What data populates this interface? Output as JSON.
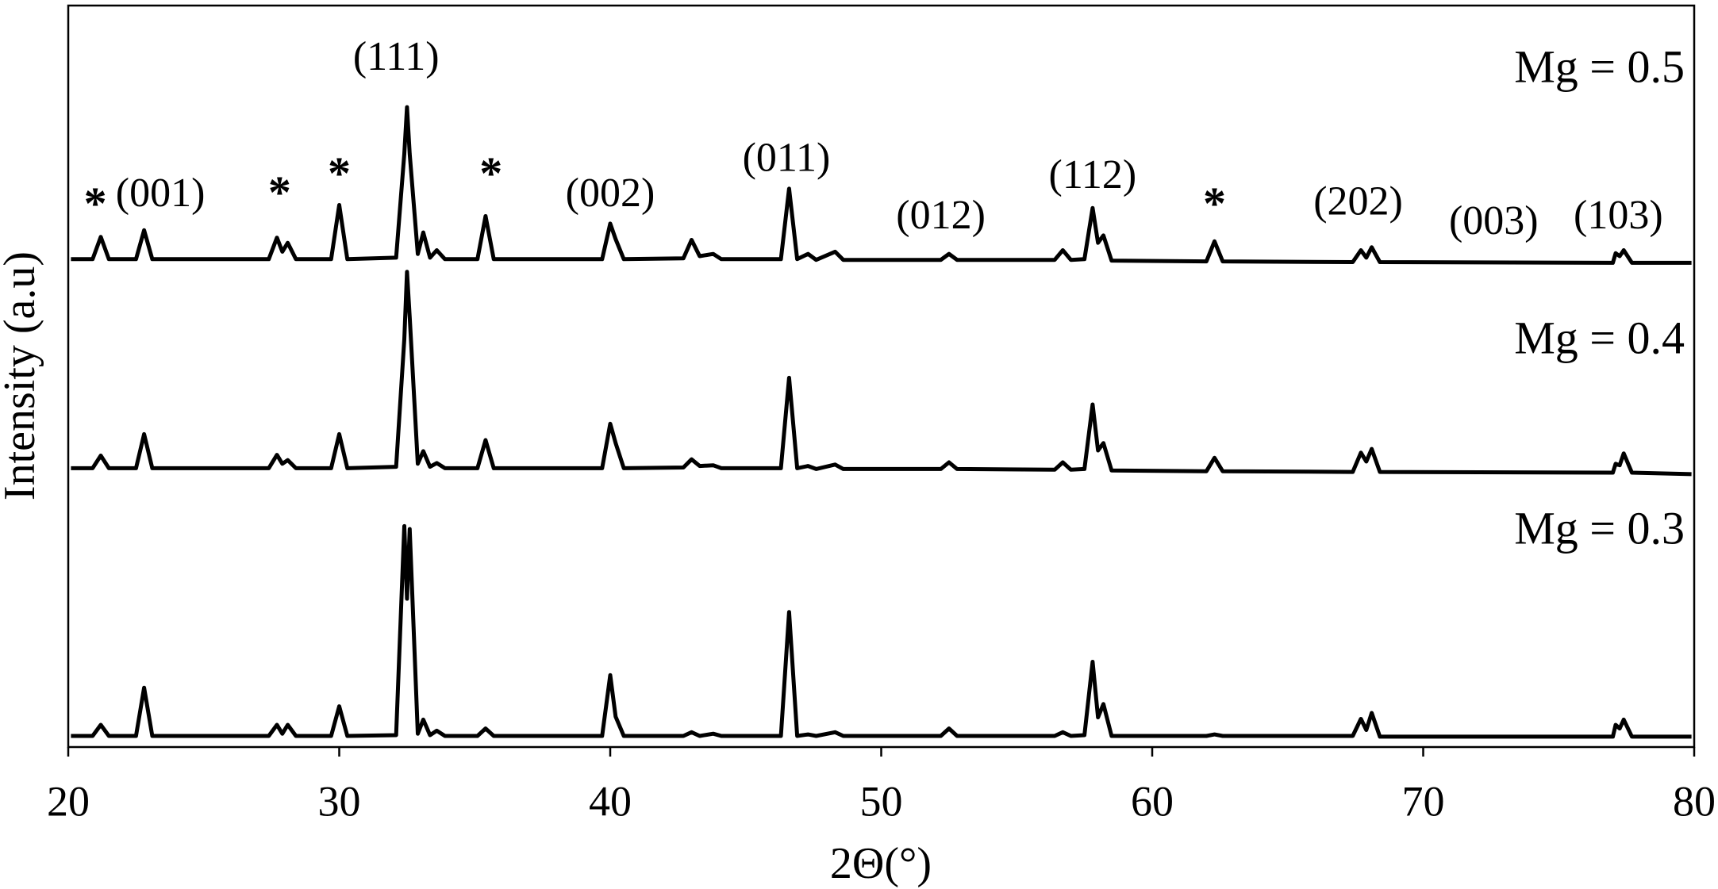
{
  "chart_data": {
    "type": "line",
    "x_label": "2Θ(°)",
    "y_label": "Intensity (a.u)",
    "xlim": [
      20,
      80
    ],
    "xticks": [
      20,
      30,
      40,
      50,
      60,
      70,
      80
    ],
    "ylim": [
      0,
      100
    ],
    "x": [
      20.1,
      20.9,
      21.2,
      21.5,
      22.5,
      22.8,
      23.1,
      27.4,
      27.7,
      27.9,
      28.1,
      28.4,
      29.7,
      30,
      30.3,
      32.1,
      32.4,
      32.5,
      32.6,
      32.9,
      33.1,
      33.35,
      33.6,
      33.9,
      35.1,
      35.4,
      35.7,
      39.7,
      40,
      40.2,
      40.5,
      42.7,
      43,
      43.3,
      43.8,
      44.1,
      46.3,
      46.6,
      46.9,
      47.3,
      47.6,
      48.3,
      48.6,
      52.2,
      52.5,
      52.8,
      56.4,
      56.7,
      57.0,
      57.5,
      57.8,
      58.0,
      58.2,
      58.5,
      62.0,
      62.3,
      62.6,
      67.4,
      67.7,
      67.9,
      68.1,
      68.4,
      77.0,
      77.1,
      77.25,
      77.4,
      77.7,
      79.9
    ],
    "series": [
      {
        "name": "Mg = 0.5",
        "color": "#000000",
        "values": [
          65.8,
          65.8,
          68.8,
          65.8,
          65.8,
          69.7,
          65.8,
          65.8,
          68.7,
          66.8,
          68,
          65.8,
          65.8,
          73.1,
          65.8,
          66,
          80,
          86.3,
          80,
          66.5,
          69.4,
          66,
          67,
          65.8,
          65.8,
          71.6,
          65.8,
          65.8,
          70.6,
          68.5,
          65.8,
          65.9,
          68.4,
          66.2,
          66.5,
          65.8,
          65.8,
          75.3,
          65.8,
          66.5,
          65.7,
          66.8,
          65.7,
          65.7,
          66.5,
          65.7,
          65.7,
          67,
          65.7,
          65.8,
          72.7,
          68,
          69,
          65.6,
          65.5,
          68.2,
          65.5,
          65.4,
          67,
          66,
          67.4,
          65.4,
          65.3,
          66.6,
          66.2,
          67,
          65.3,
          65.3
        ]
      },
      {
        "name": "Mg = 0.4",
        "color": "#000000",
        "values": [
          37.6,
          37.6,
          39.3,
          37.6,
          37.6,
          42.2,
          37.6,
          37.6,
          39.4,
          38.2,
          38.7,
          37.6,
          37.6,
          42.2,
          37.6,
          37.8,
          55,
          64.1,
          58,
          38.2,
          39.9,
          37.8,
          38.3,
          37.6,
          37.6,
          41.4,
          37.6,
          37.6,
          43.6,
          41,
          37.6,
          37.7,
          38.8,
          37.9,
          38,
          37.6,
          37.6,
          49.8,
          37.6,
          37.9,
          37.5,
          38.1,
          37.5,
          37.5,
          38.4,
          37.5,
          37.4,
          38.4,
          37.4,
          37.5,
          46.2,
          40,
          41,
          37.3,
          37.2,
          39,
          37.2,
          37.1,
          39.7,
          38.5,
          40.2,
          37.1,
          37,
          38.2,
          38,
          39.6,
          37,
          36.8
        ]
      },
      {
        "name": "Mg = 0.3",
        "color": "#000000",
        "values": [
          1.5,
          1.5,
          3,
          1.5,
          1.5,
          8,
          1.5,
          1.5,
          3,
          1.8,
          3,
          1.5,
          1.5,
          5.5,
          1.5,
          1.6,
          29.8,
          20,
          29.4,
          1.8,
          3.7,
          1.6,
          2.2,
          1.5,
          1.5,
          2.5,
          1.5,
          1.5,
          9.7,
          4.1,
          1.5,
          1.5,
          2,
          1.5,
          1.8,
          1.5,
          1.5,
          18.2,
          1.5,
          1.7,
          1.5,
          2,
          1.5,
          1.5,
          2.5,
          1.5,
          1.5,
          2,
          1.5,
          1.6,
          11.5,
          4,
          5.8,
          1.5,
          1.5,
          1.7,
          1.5,
          1.5,
          3.8,
          2.3,
          4.6,
          1.4,
          1.4,
          3,
          2.5,
          3.7,
          1.4,
          1.4
        ]
      }
    ],
    "annotations": [
      {
        "text": "*",
        "x": 21.0,
        "y": 73.7
      },
      {
        "text": "(001)",
        "x": 23.4,
        "y": 74.2
      },
      {
        "text": "*",
        "x": 27.8,
        "y": 75.2
      },
      {
        "text": "*",
        "x": 30.0,
        "y": 77.8
      },
      {
        "text": "(111)",
        "x": 32.1,
        "y": 92.6
      },
      {
        "text": "*",
        "x": 35.6,
        "y": 77.8
      },
      {
        "text": "(002)",
        "x": 40.0,
        "y": 74.2
      },
      {
        "text": "(011)",
        "x": 46.5,
        "y": 79
      },
      {
        "text": "(012)",
        "x": 52.2,
        "y": 71.2
      },
      {
        "text": "(112)",
        "x": 57.8,
        "y": 76.7
      },
      {
        "text": "*",
        "x": 62.3,
        "y": 73.7
      },
      {
        "text": "(202)",
        "x": 67.6,
        "y": 73.1
      },
      {
        "text": "(003)",
        "x": 72.6,
        "y": 70.5
      },
      {
        "text": "(103)",
        "x": 77.2,
        "y": 71.2
      }
    ]
  }
}
